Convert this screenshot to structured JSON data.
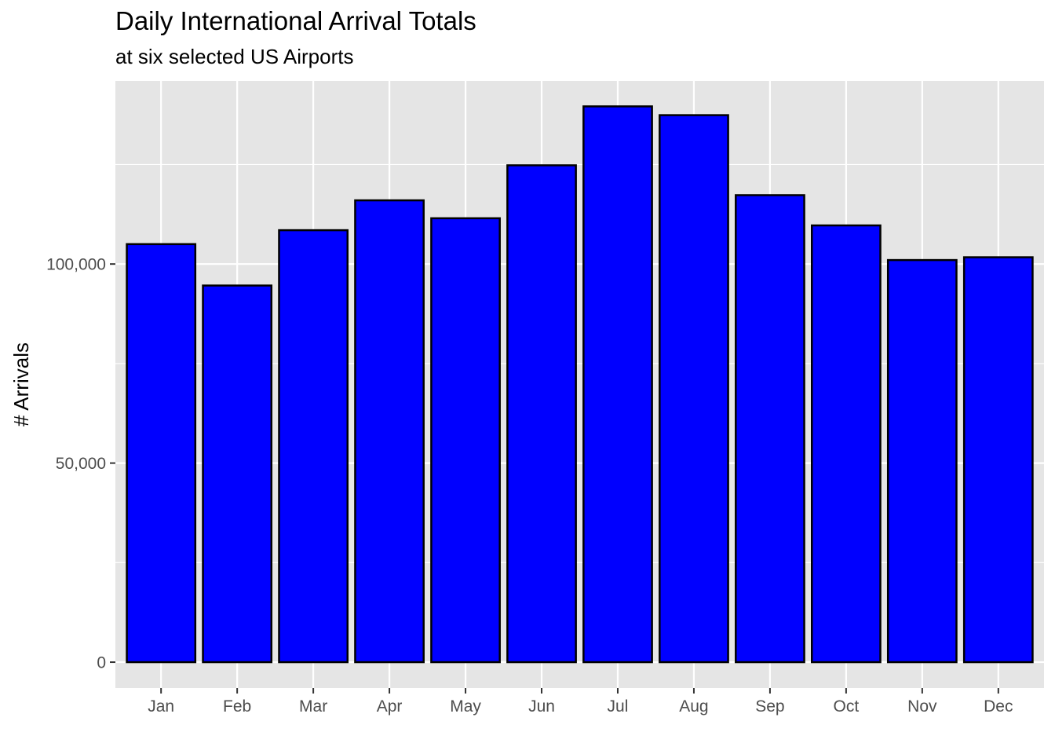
{
  "colors": {
    "panel_background": "#e5e5e5",
    "grid": "#ffffff",
    "bar_fill": "#0000ff",
    "bar_outline": "#000000",
    "tick": "#333333",
    "tick_text": "#4d4d4d"
  },
  "chart_data": {
    "type": "bar",
    "title": "Daily International Arrival Totals",
    "subtitle": "at six selected US Airports",
    "xlabel": "",
    "ylabel": "# Arrivals",
    "categories": [
      "Jan",
      "Feb",
      "Mar",
      "Apr",
      "May",
      "Jun",
      "Jul",
      "Aug",
      "Sep",
      "Oct",
      "Nov",
      "Dec"
    ],
    "values": [
      105000,
      94600,
      108500,
      116000,
      111500,
      124800,
      139600,
      137400,
      117300,
      109700,
      101000,
      101700
    ],
    "ylim": [
      -6500,
      146000
    ],
    "y_ticks": [
      0,
      50000,
      100000
    ],
    "y_tick_labels": [
      "0",
      "50,000",
      "100,000"
    ],
    "y_minor_ticks": [
      25000,
      75000,
      125000
    ],
    "grid": true,
    "legend": "none"
  }
}
